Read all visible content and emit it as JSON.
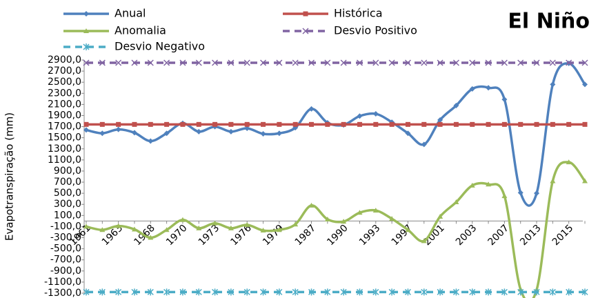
{
  "chart_data": {
    "type": "line",
    "title": "El Niño",
    "y_label": "Evapotranspiração (mm)",
    "categories": [
      "1961",
      null,
      "1963",
      null,
      "1968",
      null,
      "1970",
      null,
      "1973",
      null,
      "1976",
      null,
      "1979",
      null,
      "1987",
      null,
      "1990",
      null,
      "1993",
      null,
      "1997",
      null,
      "2001",
      null,
      "2003",
      null,
      "2007",
      null,
      "2013",
      null,
      "2015",
      null
    ],
    "series": [
      {
        "name": "Anual",
        "color": "#4f81bd",
        "marker": "diamond",
        "smooth": true,
        "dashed": false,
        "values": [
          1640,
          1580,
          1650,
          1590,
          1440,
          1580,
          1760,
          1610,
          1700,
          1610,
          1670,
          1570,
          1580,
          1680,
          2020,
          1770,
          1730,
          1890,
          1930,
          1780,
          1580,
          1380,
          1820,
          2080,
          2380,
          2400,
          2190,
          510,
          500,
          2460,
          2840,
          2460
        ]
      },
      {
        "name": "Histórica",
        "color": "#c0504d",
        "marker": "square",
        "smooth": false,
        "dashed": false,
        "values": [
          1740,
          1740,
          1740,
          1740,
          1740,
          1740,
          1740,
          1740,
          1740,
          1740,
          1740,
          1740,
          1740,
          1740,
          1740,
          1740,
          1740,
          1740,
          1740,
          1740,
          1740,
          1740,
          1740,
          1740,
          1740,
          1740,
          1740,
          1740,
          1740,
          1740,
          1740,
          1740
        ]
      },
      {
        "name": "Anomalia",
        "color": "#9bbb59",
        "marker": "triangle",
        "smooth": true,
        "dashed": false,
        "values": [
          -100,
          -160,
          -90,
          -150,
          -300,
          -160,
          20,
          -130,
          -40,
          -130,
          -70,
          -170,
          -160,
          -60,
          280,
          30,
          -10,
          150,
          190,
          40,
          -160,
          -360,
          80,
          340,
          640,
          660,
          450,
          -1230,
          -1240,
          720,
          1060,
          720
        ]
      },
      {
        "name": "Desvio Positivo",
        "color": "#8064a2",
        "marker": "x",
        "smooth": false,
        "dashed": true,
        "values": [
          2850,
          2850,
          2850,
          2850,
          2850,
          2850,
          2850,
          2850,
          2850,
          2850,
          2850,
          2850,
          2850,
          2850,
          2850,
          2850,
          2850,
          2850,
          2850,
          2850,
          2850,
          2850,
          2850,
          2850,
          2850,
          2850,
          2850,
          2850,
          2850,
          2850,
          2850,
          2850
        ]
      },
      {
        "name": "Desvio Negativo",
        "color": "#4bacc6",
        "marker": "star",
        "smooth": false,
        "dashed": true,
        "values": [
          -1280,
          -1280,
          -1280,
          -1280,
          -1280,
          -1280,
          -1280,
          -1280,
          -1280,
          -1280,
          -1280,
          -1280,
          -1280,
          -1280,
          -1280,
          -1280,
          -1280,
          -1280,
          -1280,
          -1280,
          -1280,
          -1280,
          -1280,
          -1280,
          -1280,
          -1280,
          -1280,
          -1280,
          -1280,
          -1280,
          -1280,
          -1280
        ]
      }
    ],
    "ylim": [
      -1300,
      2900
    ],
    "yticks": [
      {
        "value": -1300,
        "label": "-1300,0"
      },
      {
        "value": -1100,
        "label": "-1100,0"
      },
      {
        "value": -900,
        "label": "-900,0"
      },
      {
        "value": -700,
        "label": "-700,0"
      },
      {
        "value": -500,
        "label": "-500,0"
      },
      {
        "value": -300,
        "label": "-300,0"
      },
      {
        "value": -100,
        "label": "-100,0"
      },
      {
        "value": 100,
        "label": "100,0"
      },
      {
        "value": 300,
        "label": "300,0"
      },
      {
        "value": 500,
        "label": "500,0"
      },
      {
        "value": 700,
        "label": "700,0"
      },
      {
        "value": 900,
        "label": "900,0"
      },
      {
        "value": 1100,
        "label": "1100,0"
      },
      {
        "value": 1300,
        "label": "1300,0"
      },
      {
        "value": 1500,
        "label": "1500,0"
      },
      {
        "value": 1700,
        "label": "1700,0"
      },
      {
        "value": 1900,
        "label": "1900,0"
      },
      {
        "value": 2100,
        "label": "2100,0"
      },
      {
        "value": 2300,
        "label": "2300,0"
      },
      {
        "value": 2500,
        "label": "2500,0"
      },
      {
        "value": 2700,
        "label": "2700,0"
      },
      {
        "value": 2900,
        "label": "2900,0"
      }
    ],
    "grid": false
  }
}
